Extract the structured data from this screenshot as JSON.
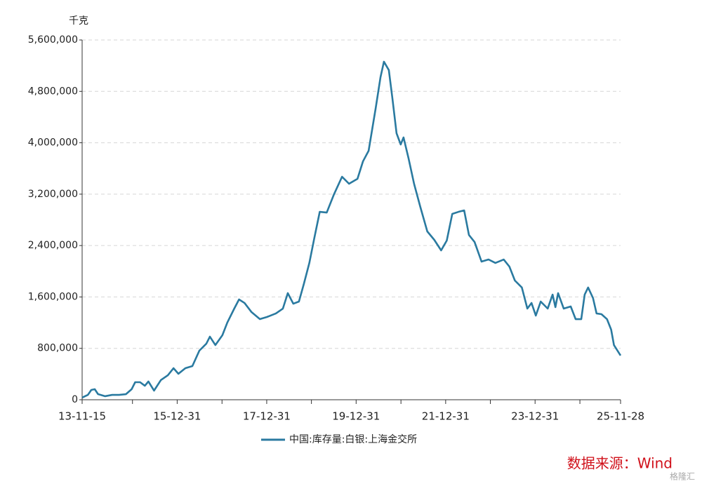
{
  "chart_data": {
    "type": "line",
    "y_label": "千克",
    "source": "数据来源：Wind",
    "watermark": "格隆汇",
    "xlim": [
      "13-11-15",
      "25-11-28"
    ],
    "xticks": [
      "13-11-15",
      {
        "value": "14-12-31",
        "label": null
      },
      "15-12-31",
      {
        "value": "16-12-31",
        "label": null
      },
      "17-12-31",
      {
        "value": "18-12-31",
        "label": null
      },
      "19-12-31",
      {
        "value": "20-12-31",
        "label": null
      },
      "21-12-31",
      {
        "value": "22-12-31",
        "label": null
      },
      "23-12-31",
      {
        "value": "24-12-31",
        "label": null
      },
      "25-11-28"
    ],
    "ylim": [
      0,
      5600000
    ],
    "yticks": [
      0,
      {
        "value": 800000,
        "label": "800,000"
      },
      {
        "value": 1600000,
        "label": "1,600,000"
      },
      {
        "value": 2400000,
        "label": "2,400,000"
      },
      {
        "value": 3200000,
        "label": "3,200,000"
      },
      {
        "value": 4000000,
        "label": "4,000,000"
      },
      {
        "value": 4800000,
        "label": "4,800,000"
      },
      {
        "value": 5600000,
        "label": "5,600,000"
      }
    ],
    "grid": true,
    "x": [
      "13-11-15",
      "14-01-01",
      "14-01-29",
      "14-02-26",
      "14-03-25",
      "14-05-22",
      "14-07-18",
      "14-09-13",
      "14-11-08",
      "14-12-24",
      "15-01-22",
      "15-03-03",
      "15-04-11",
      "15-05-10",
      "15-06-25",
      "15-08-20",
      "15-10-16",
      "15-12-01",
      "16-01-10",
      "16-03-07",
      "16-05-03",
      "16-06-29",
      "16-08-25",
      "16-09-23",
      "16-11-07",
      "17-01-03",
      "17-02-12",
      "17-04-10",
      "17-05-19",
      "17-07-03",
      "17-08-29",
      "17-11-05",
      "18-01-02",
      "18-03-16",
      "18-05-12",
      "18-06-21",
      "18-08-05",
      "18-09-20",
      "18-10-30",
      "18-12-14",
      "19-01-23",
      "19-03-09",
      "19-05-05",
      "19-07-01",
      "19-09-07",
      "19-11-03",
      "20-01-11",
      "20-02-25",
      "20-04-11",
      "20-06-07",
      "20-07-17",
      "20-08-14",
      "20-09-23",
      "20-10-22",
      "20-11-25",
      "20-12-29",
      "21-01-21",
      "21-03-02",
      "21-04-17",
      "21-06-07",
      "21-08-03",
      "21-09-29",
      "21-11-24",
      "22-01-09",
      "22-02-23",
      "22-04-15",
      "22-05-31",
      "22-07-09",
      "22-08-24",
      "22-10-20",
      "22-12-16",
      "23-02-10",
      "23-04-19",
      "23-06-04",
      "23-07-19",
      "23-09-14",
      "23-10-29",
      "23-12-02",
      "24-01-06",
      "24-02-15",
      "24-04-12",
      "24-05-22",
      "24-06-14",
      "24-07-06",
      "24-08-21",
      "24-10-17",
      "24-11-26",
      "25-01-11",
      "25-02-08",
      "25-03-08",
      "25-04-17",
      "25-05-16",
      "25-06-25",
      "25-08-09",
      "25-09-12",
      "25-10-05",
      "25-11-28"
    ],
    "series": [
      {
        "name": "中国:库存量:白银:上海金交所",
        "color": "#2a7aa0",
        "values": [
          33000,
          76000,
          153000,
          164000,
          87000,
          55000,
          76000,
          76000,
          87000,
          164000,
          273000,
          273000,
          218000,
          284000,
          142000,
          306000,
          382000,
          491000,
          404000,
          491000,
          524000,
          764000,
          873000,
          982000,
          851000,
          1004000,
          1200000,
          1419000,
          1561000,
          1506000,
          1364000,
          1255000,
          1288000,
          1343000,
          1419000,
          1659000,
          1495000,
          1528000,
          1801000,
          2129000,
          2511000,
          2925000,
          2914000,
          3188000,
          3471000,
          3362000,
          3439000,
          3711000,
          3875000,
          4530000,
          5021000,
          5262000,
          5131000,
          4694000,
          4148000,
          3973000,
          4083000,
          3766000,
          3362000,
          3002000,
          2620000,
          2489000,
          2325000,
          2478000,
          2893000,
          2925000,
          2947000,
          2565000,
          2456000,
          2150000,
          2183000,
          2129000,
          2183000,
          2074000,
          1856000,
          1747000,
          1419000,
          1506000,
          1310000,
          1528000,
          1419000,
          1637000,
          1441000,
          1659000,
          1419000,
          1452000,
          1255000,
          1255000,
          1637000,
          1747000,
          1583000,
          1343000,
          1332000,
          1255000,
          1092000,
          851000,
          688000
        ]
      }
    ]
  }
}
